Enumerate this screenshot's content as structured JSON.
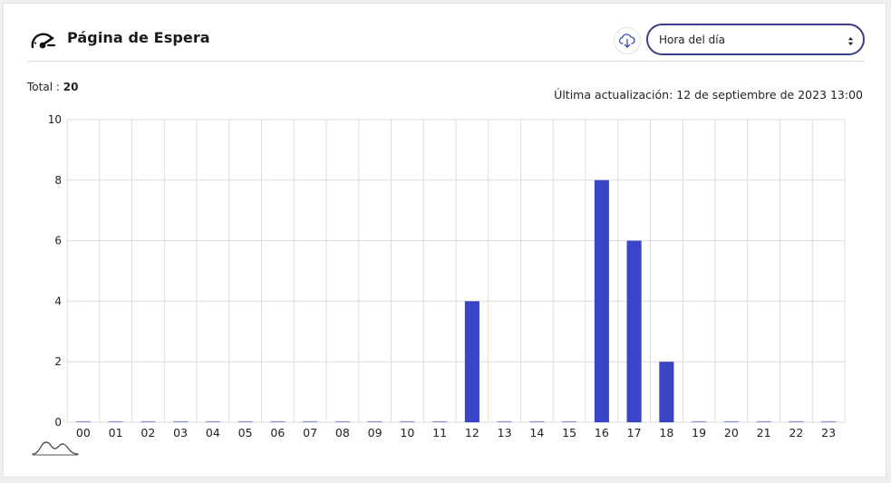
{
  "header": {
    "title": "Página de Espera",
    "select_value": "Hora del día",
    "icons": {
      "page": "gauge-icon",
      "download": "cloud-download-icon",
      "select": "updown-arrows-icon",
      "chart_toggle": "bell-curve-icon"
    }
  },
  "summary": {
    "total_label": "Total :",
    "total_value": "20",
    "updated_text": "Última actualización: 12 de septiembre de 2023 13:00"
  },
  "colors": {
    "bar": "#3a44c6",
    "accent": "#3c3c8a",
    "grid": "#dcdcdc"
  },
  "chart_data": {
    "type": "bar",
    "categories": [
      "00",
      "01",
      "02",
      "03",
      "04",
      "05",
      "06",
      "07",
      "08",
      "09",
      "10",
      "11",
      "12",
      "13",
      "14",
      "15",
      "16",
      "17",
      "18",
      "19",
      "20",
      "21",
      "22",
      "23"
    ],
    "values": [
      0,
      0,
      0,
      0,
      0,
      0,
      0,
      0,
      0,
      0,
      0,
      0,
      4,
      0,
      0,
      0,
      8,
      6,
      2,
      0,
      0,
      0,
      0,
      0
    ],
    "yticks": [
      0,
      2,
      4,
      6,
      8,
      10
    ],
    "ylim": [
      0,
      10
    ],
    "grid": true,
    "title": "",
    "xlabel": "",
    "ylabel": ""
  }
}
